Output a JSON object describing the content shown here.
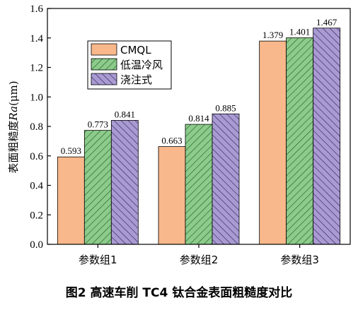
{
  "caption": "图2   高速车削 TC4 钛合金表面粗糙度对比",
  "chart_data": {
    "type": "bar",
    "categories": [
      "参数组1",
      "参数组2",
      "参数组3"
    ],
    "series": [
      {
        "name": "CMQL",
        "values": [
          0.593,
          0.663,
          1.379
        ],
        "labels": [
          "0.593",
          "0.663",
          "1.379"
        ],
        "color": "#F8B88B",
        "pattern": "solid"
      },
      {
        "name": "低温冷风",
        "values": [
          0.773,
          0.814,
          1.401
        ],
        "labels": [
          "0.773",
          "0.814",
          "1.401"
        ],
        "color": "#8CCB8C",
        "pattern": "hatch"
      },
      {
        "name": "浇注式",
        "values": [
          0.841,
          0.885,
          1.467
        ],
        "labels": [
          "0.841",
          "0.885",
          "1.467"
        ],
        "color": "#A99BD2",
        "pattern": "hatch"
      }
    ],
    "ylabel": "表面粗糙度",
    "ylabel_italic": "Ra",
    "ylabel_unit": "(μm)",
    "ylim": [
      0,
      1.6
    ],
    "yticks": [
      "0.0",
      "0.2",
      "0.4",
      "0.6",
      "0.8",
      "1.0",
      "1.2",
      "1.4",
      "1.6"
    ],
    "legend_position": "upper-left",
    "grid": false
  }
}
